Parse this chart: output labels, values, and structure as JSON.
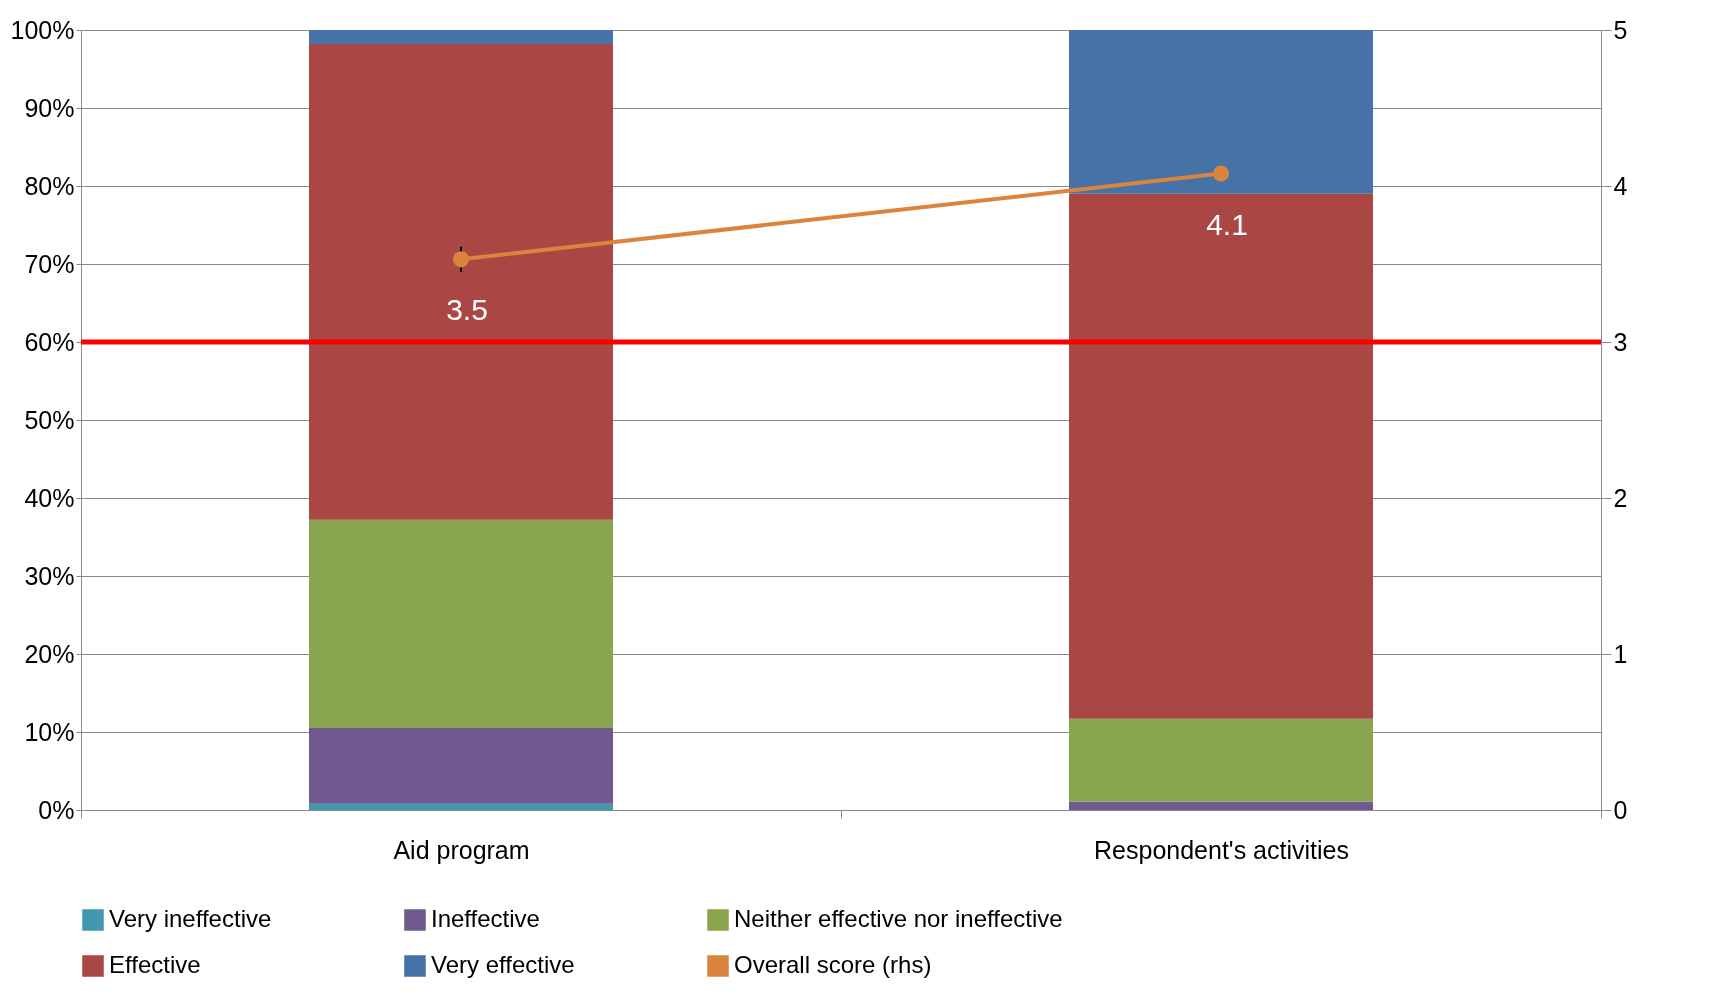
{
  "chart_data": {
    "type": "bar",
    "stacked": true,
    "categories": [
      "Aid program",
      "Respondent's activities"
    ],
    "series": [
      {
        "name": "Very ineffective",
        "color": "#4198af",
        "values": [
          0.8,
          0
        ]
      },
      {
        "name": "Ineffective",
        "color": "#71588f",
        "values": [
          9.7,
          1.1
        ]
      },
      {
        "name": "Neither effective nor ineffective",
        "color": "#89a54e",
        "values": [
          26.7,
          10.6
        ]
      },
      {
        "name": "Effective",
        "color": "#aa4643",
        "values": [
          61.0,
          67.3
        ]
      },
      {
        "name": "Very effective",
        "color": "#4572a7",
        "values": [
          1.8,
          21.0
        ]
      },
      {
        "name": "Overall score (rhs)",
        "type": "line",
        "axis": "y2",
        "color": "#db843d",
        "marker": "circle",
        "values": [
          3.53,
          4.08
        ],
        "errors": [
          0.08,
          null
        ],
        "value_labels": [
          "3.5",
          "4.1"
        ]
      }
    ],
    "ylim": [
      0,
      100
    ],
    "yticks": [
      {
        "value": 0,
        "label": "0%"
      },
      {
        "value": 10,
        "label": "10%"
      },
      {
        "value": 20,
        "label": "20%"
      },
      {
        "value": 30,
        "label": "30%"
      },
      {
        "value": 40,
        "label": "40%"
      },
      {
        "value": 50,
        "label": "50%"
      },
      {
        "value": 60,
        "label": "60%"
      },
      {
        "value": 70,
        "label": "70%"
      },
      {
        "value": 80,
        "label": "80%"
      },
      {
        "value": 90,
        "label": "90%"
      },
      {
        "value": 100,
        "label": "100%"
      }
    ],
    "y2lim": [
      0,
      5
    ],
    "y2ticks": [
      0,
      1,
      2,
      3,
      4,
      5
    ],
    "ref_lines": [
      {
        "axis": "y",
        "value": 60,
        "color": "#ff0000"
      }
    ],
    "grid": "y",
    "legend": "bottom"
  }
}
